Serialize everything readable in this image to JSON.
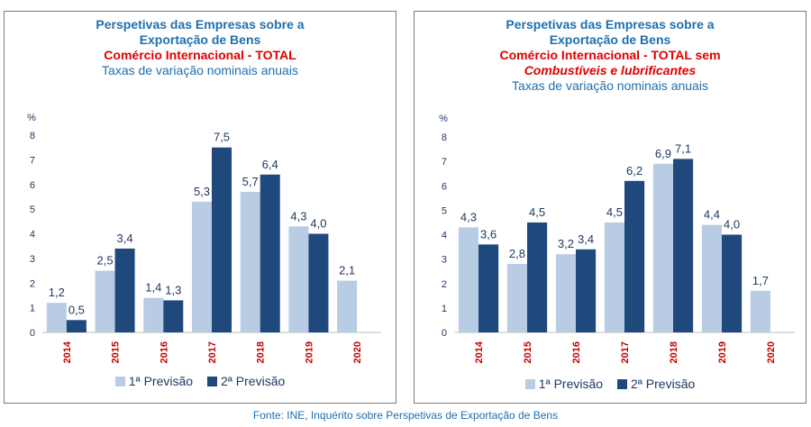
{
  "colors": {
    "previsao1": "#b8cce4",
    "previsao2": "#1f497d",
    "title": "#1f6fae",
    "highlight": "#e00000",
    "year_label": "#c00000"
  },
  "chart_data": [
    {
      "type": "bar",
      "title": "Perspetivas das Empresas sobre a Exportação de Bens",
      "subtitle": "Comércio Internacional - TOTAL",
      "subtitle2": "",
      "note": "Taxas de variação nominais anuais",
      "ylabel": "%",
      "ylim": [
        0,
        8
      ],
      "yticks": [
        "0",
        "1",
        "2",
        "3",
        "4",
        "5",
        "6",
        "7",
        "8"
      ],
      "categories": [
        "2014",
        "2015",
        "2016",
        "2017",
        "2018",
        "2019",
        "2020"
      ],
      "series": [
        {
          "name": "1ª Previsão",
          "values": [
            1.2,
            2.5,
            1.4,
            5.3,
            5.7,
            4.3,
            2.1
          ],
          "labels": [
            "1,2",
            "2,5",
            "1,4",
            "5,3",
            "5,7",
            "4,3",
            "2,1"
          ]
        },
        {
          "name": "2ª Previsão",
          "values": [
            0.5,
            3.4,
            1.3,
            7.5,
            6.4,
            4.0,
            null
          ],
          "labels": [
            "0,5",
            "3,4",
            "1,3",
            "7,5",
            "6,4",
            "4,0",
            ""
          ]
        }
      ],
      "grid": false,
      "legend_position": "bottom"
    },
    {
      "type": "bar",
      "title": "Perspetivas das Empresas sobre a Exportação de Bens",
      "subtitle": "Comércio Internacional - TOTAL sem",
      "subtitle2": "Combustíveis e lubrificantes",
      "note": "Taxas de variação nominais anuais",
      "ylabel": "%",
      "ylim": [
        0,
        8
      ],
      "yticks": [
        "0",
        "1",
        "2",
        "3",
        "4",
        "5",
        "6",
        "7",
        "8"
      ],
      "categories": [
        "2014",
        "2015",
        "2016",
        "2017",
        "2018",
        "2019",
        "2020"
      ],
      "series": [
        {
          "name": "1ª Previsão",
          "values": [
            4.3,
            2.8,
            3.2,
            4.5,
            6.9,
            4.4,
            1.7
          ],
          "labels": [
            "4,3",
            "2,8",
            "3,2",
            "4,5",
            "6,9",
            "4,4",
            "1,7"
          ]
        },
        {
          "name": "2ª Previsão",
          "values": [
            3.6,
            4.5,
            3.4,
            6.2,
            7.1,
            4.0,
            null
          ],
          "labels": [
            "3,6",
            "4,5",
            "3,4",
            "6,2",
            "7,1",
            "4,0",
            ""
          ]
        }
      ],
      "grid": false,
      "legend_position": "bottom"
    }
  ],
  "source": "Fonte: INE, Inquérito sobre Perspetivas de Exportação de Bens"
}
